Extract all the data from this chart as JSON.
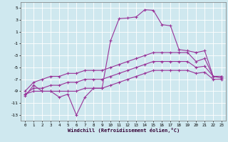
{
  "xlabel": "Windchill (Refroidissement éolien,°C)",
  "bg_color": "#cfe8ef",
  "grid_color": "#aacccc",
  "line_color": "#993399",
  "xlim": [
    -0.5,
    23.5
  ],
  "ylim": [
    -14,
    6
  ],
  "xticks": [
    0,
    1,
    2,
    3,
    4,
    5,
    6,
    7,
    8,
    9,
    10,
    11,
    12,
    13,
    14,
    15,
    16,
    17,
    18,
    19,
    20,
    21,
    22,
    23
  ],
  "yticks": [
    -13,
    -11,
    -9,
    -7,
    -5,
    -3,
    -1,
    1,
    3,
    5
  ],
  "hours": [
    0,
    1,
    2,
    3,
    4,
    5,
    6,
    7,
    8,
    9,
    10,
    11,
    12,
    13,
    14,
    15,
    16,
    17,
    18,
    19,
    20,
    21,
    22,
    23
  ],
  "temp": [
    -9.8,
    -8.0,
    -9.0,
    -9.0,
    -10.0,
    -9.5,
    -13.0,
    -10.0,
    -8.5,
    -8.5,
    -0.5,
    3.2,
    3.3,
    3.5,
    4.7,
    4.6,
    2.2,
    2.0,
    -2.0,
    -2.2,
    -2.5,
    -2.2,
    -6.5,
    -6.5
  ],
  "wc_upper": [
    -9.0,
    -7.5,
    -7.0,
    -6.5,
    -6.5,
    -6.0,
    -6.0,
    -5.5,
    -5.5,
    -5.5,
    -5.0,
    -4.5,
    -4.0,
    -3.5,
    -3.0,
    -2.5,
    -2.5,
    -2.5,
    -2.5,
    -2.5,
    -4.0,
    -3.5,
    -6.5,
    -6.5
  ],
  "wc_mid": [
    -9.5,
    -8.5,
    -8.5,
    -8.0,
    -8.0,
    -7.5,
    -7.5,
    -7.0,
    -7.0,
    -7.0,
    -6.5,
    -6.0,
    -5.5,
    -5.0,
    -4.5,
    -4.0,
    -4.0,
    -4.0,
    -4.0,
    -4.0,
    -5.0,
    -4.8,
    -6.5,
    -6.8
  ],
  "wc_lower": [
    -9.5,
    -9.0,
    -9.0,
    -9.0,
    -9.0,
    -9.0,
    -9.0,
    -8.5,
    -8.5,
    -8.5,
    -8.0,
    -7.5,
    -7.0,
    -6.5,
    -6.0,
    -5.5,
    -5.5,
    -5.5,
    -5.5,
    -5.5,
    -6.0,
    -5.8,
    -7.0,
    -7.0
  ]
}
